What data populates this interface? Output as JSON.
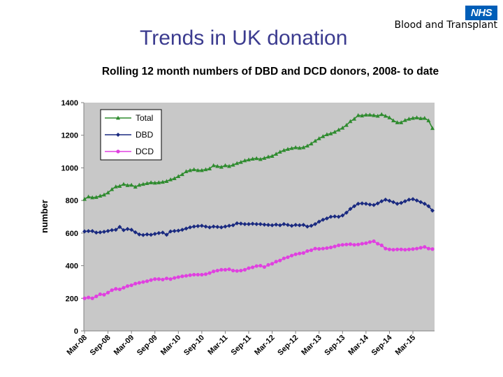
{
  "slide": {
    "title": "Trends in UK donation",
    "logo_text": "NHS",
    "org_name": "Blood and Transplant"
  },
  "colors": {
    "total": "#2e8b2e",
    "dbd": "#1a2a80",
    "dcd": "#e040e0",
    "plot_bg": "#c8c8c8",
    "logo_bg": "#005eb8"
  },
  "chart_data": {
    "type": "line",
    "title": "Rolling 12 month numbers of DBD and DCD donors, 2008- to date",
    "xlabel": "",
    "ylabel": "number",
    "ylim": [
      0,
      1400
    ],
    "yticks": [
      "0",
      "200",
      "400",
      "600",
      "800",
      "1000",
      "1200",
      "1400"
    ],
    "x_tick_labels": [
      "Mar-08",
      "Sep-08",
      "Mar-09",
      "Sep-09",
      "Mar-10",
      "Sep-10",
      "Mar-11",
      "Sep-11",
      "Mar-12",
      "Sep-12",
      "Mar-13",
      "Sep-13",
      "Mar-14",
      "Sep-14",
      "Mar-15"
    ],
    "x_start": "Mar-08",
    "x_end": "Jun-15",
    "x_step": "1 month",
    "grid": false,
    "legend_placement": "top-left",
    "series": [
      {
        "name": "Total",
        "color": "#2e8b2e",
        "marker": "triangle",
        "values": [
          808,
          823,
          818,
          820,
          828,
          835,
          848,
          868,
          885,
          888,
          900,
          893,
          895,
          883,
          895,
          900,
          905,
          910,
          908,
          910,
          913,
          918,
          928,
          935,
          948,
          960,
          978,
          985,
          990,
          985,
          985,
          990,
          995,
          1015,
          1010,
          1005,
          1015,
          1010,
          1018,
          1028,
          1035,
          1045,
          1050,
          1055,
          1058,
          1053,
          1060,
          1068,
          1072,
          1085,
          1098,
          1108,
          1115,
          1120,
          1125,
          1122,
          1125,
          1135,
          1148,
          1165,
          1180,
          1193,
          1205,
          1210,
          1220,
          1233,
          1245,
          1262,
          1285,
          1300,
          1322,
          1320,
          1325,
          1325,
          1322,
          1318,
          1328,
          1318,
          1308,
          1290,
          1278,
          1278,
          1292,
          1300,
          1305,
          1308,
          1303,
          1305,
          1290,
          1243
        ]
      },
      {
        "name": "DBD",
        "color": "#1a2a80",
        "marker": "diamond",
        "values": [
          610,
          612,
          612,
          603,
          605,
          608,
          613,
          618,
          620,
          638,
          618,
          625,
          620,
          605,
          592,
          588,
          592,
          590,
          595,
          600,
          603,
          590,
          610,
          613,
          615,
          620,
          628,
          635,
          640,
          643,
          645,
          640,
          635,
          640,
          638,
          635,
          640,
          645,
          648,
          660,
          658,
          655,
          655,
          657,
          655,
          655,
          652,
          650,
          648,
          652,
          648,
          655,
          650,
          645,
          650,
          648,
          650,
          640,
          645,
          655,
          670,
          682,
          690,
          700,
          702,
          700,
          708,
          725,
          748,
          765,
          780,
          782,
          780,
          775,
          772,
          782,
          795,
          805,
          798,
          790,
          780,
          785,
          795,
          805,
          808,
          800,
          790,
          780,
          765,
          738
        ]
      },
      {
        "name": "DCD",
        "color": "#e040e0",
        "marker": "circle",
        "values": [
          200,
          205,
          200,
          212,
          225,
          222,
          235,
          250,
          258,
          255,
          265,
          275,
          280,
          290,
          295,
          300,
          305,
          312,
          318,
          318,
          315,
          322,
          318,
          325,
          330,
          335,
          338,
          342,
          345,
          345,
          345,
          348,
          355,
          365,
          370,
          375,
          375,
          378,
          370,
          368,
          370,
          375,
          385,
          390,
          398,
          400,
          392,
          405,
          412,
          425,
          432,
          445,
          452,
          462,
          470,
          475,
          478,
          490,
          495,
          505,
          503,
          505,
          508,
          512,
          518,
          525,
          528,
          530,
          532,
          528,
          530,
          535,
          538,
          545,
          550,
          535,
          525,
          505,
          500,
          498,
          500,
          500,
          498,
          500,
          502,
          505,
          510,
          515,
          505,
          502
        ]
      }
    ]
  }
}
